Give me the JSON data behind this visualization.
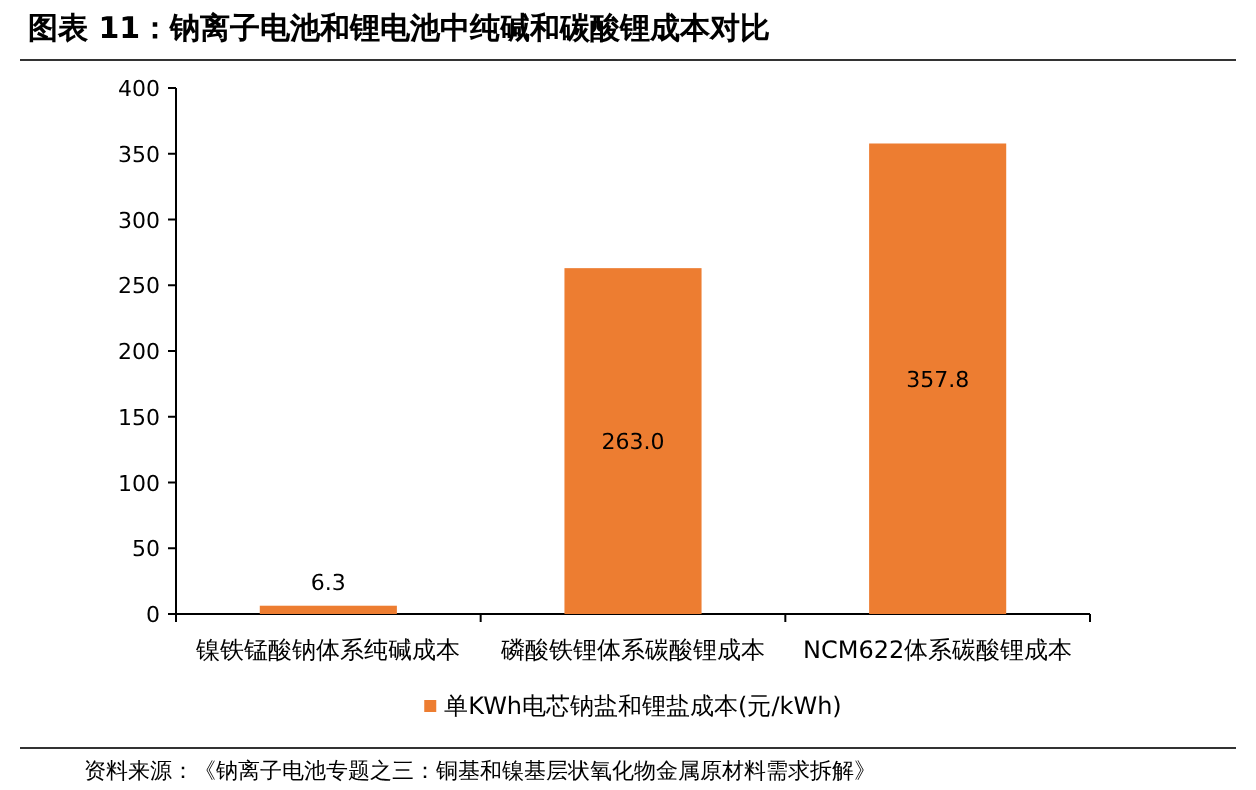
{
  "chart_data": {
    "type": "bar",
    "title": "图表 11：钠离子电池和锂电池中纯碱和碳酸锂成本对比",
    "categories": [
      "镍铁锰酸钠体系纯碱成本",
      "磷酸铁锂体系碳酸锂成本",
      "NCM622体系碳酸锂成本"
    ],
    "series": [
      {
        "name": "单KWh电芯钠盐和锂盐成本(元/kWh)",
        "color": "#ed7d31",
        "values": [
          6.3,
          263.0,
          357.8
        ],
        "value_labels": [
          "6.3",
          "263.0",
          "357.8"
        ]
      }
    ],
    "ylim": [
      0,
      400
    ],
    "yticks": [
      0,
      50,
      100,
      150,
      200,
      250,
      300,
      350,
      400
    ],
    "grid": false,
    "legend": "bottom",
    "annotations": [
      "资料来源：《钠离子电池专题之三：铜基和镍基层状氧化物金属原材料需求拆解》"
    ]
  }
}
